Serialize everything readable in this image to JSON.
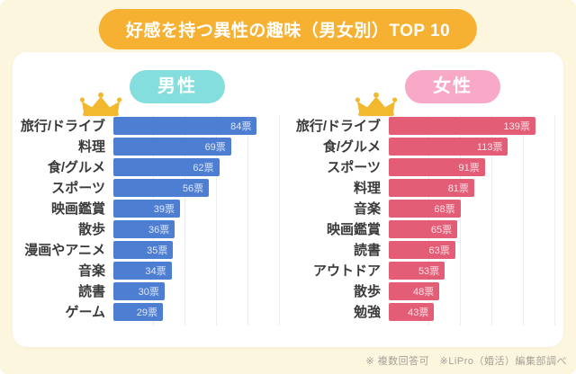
{
  "title": "好感を持つ異性の趣味（男女別）TOP 10",
  "footer_note": "※ 複数回答可　※LiPro（婚活）編集部調べ",
  "colors": {
    "background": "#fcf6de",
    "title_pill": "#f6b133",
    "card": "#ffffff",
    "male_pill": "#84dedd",
    "female_pill": "#f8a9c7",
    "male_bar": "#4e7ed2",
    "female_bar": "#e45d76",
    "crown": "#f2b92f",
    "label_text": "#3a3a3a",
    "footer_text": "#a5a098"
  },
  "chart_data": [
    {
      "type": "bar",
      "orientation": "horizontal",
      "group_label": "男性",
      "unit": "票",
      "categories": [
        "旅行/ドライブ",
        "料理",
        "食/グルメ",
        "スポーツ",
        "映画鑑賞",
        "散歩",
        "漫画やアニメ",
        "音楽",
        "読書",
        "ゲーム"
      ],
      "values": [
        84,
        69,
        62,
        56,
        39,
        36,
        35,
        34,
        30,
        29
      ],
      "value_labels": [
        "84票",
        "69票",
        "62票",
        "56票",
        "39票",
        "36票",
        "35票",
        "34票",
        "30票",
        "29票"
      ],
      "xmax": 97,
      "bar_color": "#4e7ed2",
      "grid": true,
      "legend_position": "none",
      "top_item_has_crown": true
    },
    {
      "type": "bar",
      "orientation": "horizontal",
      "group_label": "女性",
      "unit": "票",
      "categories": [
        "旅行/ドライブ",
        "食/グルメ",
        "スポーツ",
        "料理",
        "音楽",
        "映画鑑賞",
        "読書",
        "アウトドア",
        "散歩",
        "勉強"
      ],
      "values": [
        139,
        113,
        91,
        81,
        68,
        65,
        63,
        53,
        48,
        43
      ],
      "value_labels": [
        "139票",
        "113票",
        "91票",
        "81票",
        "68票",
        "65票",
        "63票",
        "53票",
        "48票",
        "43票"
      ],
      "xmax": 157,
      "bar_color": "#e45d76",
      "grid": true,
      "legend_position": "none",
      "top_item_has_crown": true
    }
  ]
}
